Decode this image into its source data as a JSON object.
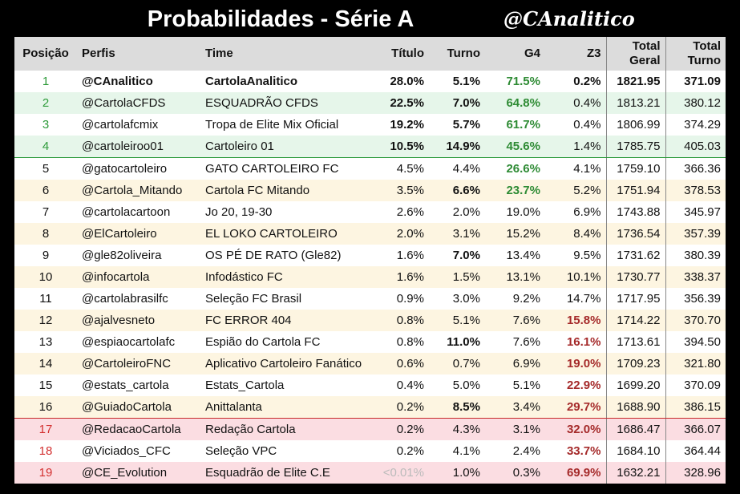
{
  "header": {
    "title": "Probabilidades - Série A",
    "logo": "@CAnalitico"
  },
  "table": {
    "headers": [
      "Posição",
      "Perfis",
      "Time",
      "Título",
      "Turno",
      "G4",
      "Z3",
      "Total Geral",
      "Total Turno"
    ],
    "rows": [
      [
        "1",
        "@CAnalitico",
        "CartolaAnalitico",
        "28.0%",
        "5.1%",
        "71.5%",
        "0.2%",
        "1821.95",
        "371.09"
      ],
      [
        "2",
        "@CartolaCFDS",
        "ESQUADRÃO CFDS",
        "22.5%",
        "7.0%",
        "64.8%",
        "0.4%",
        "1813.21",
        "380.12"
      ],
      [
        "3",
        "@cartolafcmix",
        "Tropa de Elite Mix Oficial",
        "19.2%",
        "5.7%",
        "61.7%",
        "0.4%",
        "1806.99",
        "374.29"
      ],
      [
        "4",
        "@cartoleiroo01",
        "Cartoleiro 01",
        "10.5%",
        "14.9%",
        "45.6%",
        "1.4%",
        "1785.75",
        "405.03"
      ],
      [
        "5",
        "@gatocartoleiro",
        "GATO CARTOLEIRO FC",
        "4.5%",
        "4.4%",
        "26.6%",
        "4.1%",
        "1759.10",
        "366.36"
      ],
      [
        "6",
        "@Cartola_Mitando",
        "Cartola FC Mitando",
        "3.5%",
        "6.6%",
        "23.7%",
        "5.2%",
        "1751.94",
        "378.53"
      ],
      [
        "7",
        "@cartolacartoon",
        "Jo 20, 19-30",
        "2.6%",
        "2.0%",
        "19.0%",
        "6.9%",
        "1743.88",
        "345.97"
      ],
      [
        "8",
        "@ElCartoleiro",
        "EL LOKO CARTOLEIRO",
        "2.0%",
        "3.1%",
        "15.2%",
        "8.4%",
        "1736.54",
        "357.39"
      ],
      [
        "9",
        "@gle82oliveira",
        "OS PÉ DE RATO (Gle82)",
        "1.6%",
        "7.0%",
        "13.4%",
        "9.5%",
        "1731.62",
        "380.39"
      ],
      [
        "10",
        "@infocartola",
        "Infodástico FC",
        "1.6%",
        "1.5%",
        "13.1%",
        "10.1%",
        "1730.77",
        "338.37"
      ],
      [
        "11",
        "@cartolabrasilfc",
        "Seleção FC Brasil",
        "0.9%",
        "3.0%",
        "9.2%",
        "14.7%",
        "1717.95",
        "356.39"
      ],
      [
        "12",
        "@ajalvesneto",
        "FC ERROR 404",
        "0.8%",
        "5.1%",
        "7.6%",
        "15.8%",
        "1714.22",
        "370.70"
      ],
      [
        "13",
        "@espiaocartolafc",
        "Espião do Cartola FC",
        "0.8%",
        "11.0%",
        "7.6%",
        "16.1%",
        "1713.61",
        "394.50"
      ],
      [
        "14",
        "@CartoleiroFNC",
        "Aplicativo Cartoleiro Fanático",
        "0.6%",
        "0.7%",
        "6.9%",
        "19.0%",
        "1709.23",
        "321.80"
      ],
      [
        "15",
        "@estats_cartola",
        "Estats_Cartola",
        "0.4%",
        "5.0%",
        "5.1%",
        "22.9%",
        "1699.20",
        "370.09"
      ],
      [
        "16",
        "@GuiadoCartola",
        "Anittalanta",
        "0.2%",
        "8.5%",
        "3.4%",
        "29.7%",
        "1688.90",
        "386.15"
      ],
      [
        "17",
        "@RedacaoCartola",
        "Redação Cartola",
        "0.2%",
        "4.3%",
        "3.1%",
        "32.0%",
        "1686.47",
        "366.07"
      ],
      [
        "18",
        "@Viciados_CFC",
        "Seleção VPC",
        "0.2%",
        "4.1%",
        "2.4%",
        "33.7%",
        "1684.10",
        "364.44"
      ],
      [
        "19",
        "@CE_Evolution",
        "Esquadrão de Elite C.E",
        "<0.01%",
        "1.0%",
        "0.3%",
        "69.9%",
        "1632.21",
        "328.96"
      ]
    ]
  }
}
